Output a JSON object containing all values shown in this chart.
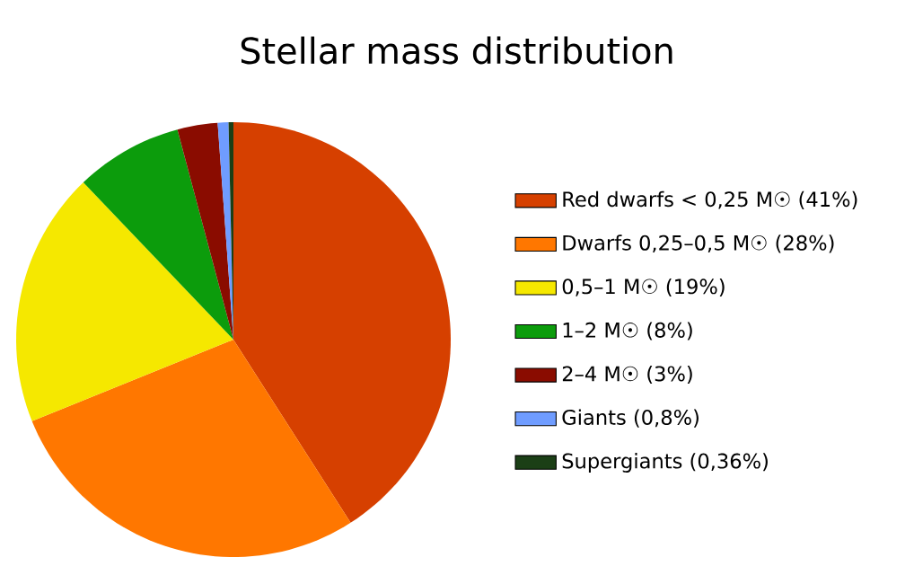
{
  "chart_data": {
    "type": "pie",
    "title": "Stellar mass distribution",
    "categories": [
      "Red dwarfs < 0,25 M☉ (41%)",
      "Dwarfs 0,25–0,5 M☉ (28%)",
      "0,5–1 M☉ (19%)",
      "1–2 M☉ (8%)",
      "2–4 M☉ (3%)",
      "Giants (0,8%)",
      "Supergiants (0,36%)"
    ],
    "values": [
      41,
      28,
      19,
      8,
      3,
      0.8,
      0.36
    ],
    "colors": [
      "#d64000",
      "#ff7700",
      "#f5e800",
      "#0c9c0c",
      "#8a0c00",
      "#6f9cff",
      "#1b3f16"
    ],
    "legend": "right"
  }
}
